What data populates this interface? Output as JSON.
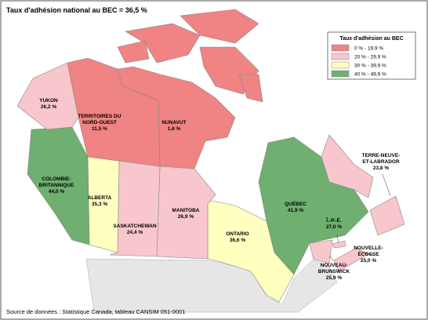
{
  "title": "Taux d'adhésion national au BEC = 36,5 %",
  "legend": {
    "title": "Taux d'adhésion au BEC",
    "items": [
      {
        "label": "0 % - 19,9 %",
        "color": "#f08383"
      },
      {
        "label": "20 % - 29,9 %",
        "color": "#f8c6cd"
      },
      {
        "label": "30 % - 39,9 %",
        "color": "#ffffc0"
      },
      {
        "label": "40 % - 49,9 %",
        "color": "#6faf6f"
      }
    ]
  },
  "regions": [
    {
      "name": [
        "YUKON"
      ],
      "value": "26,2 %",
      "color": "#f8c6cd"
    },
    {
      "name": [
        "TERRITOIRES DU",
        "NORD-OUEST"
      ],
      "value": "11,5 %",
      "color": "#f08383"
    },
    {
      "name": [
        "NUNAVUT"
      ],
      "value": "1,6 %",
      "color": "#f08383"
    },
    {
      "name": [
        "COLOMBIE-",
        "BRITANNIQUE"
      ],
      "value": "44,0 %",
      "color": "#6faf6f"
    },
    {
      "name": [
        "ALBERTA"
      ],
      "value": "35,3 %",
      "color": "#ffffc0"
    },
    {
      "name": [
        "SASKATCHEWAN"
      ],
      "value": "24,4 %",
      "color": "#f8c6cd"
    },
    {
      "name": [
        "MANITOBA"
      ],
      "value": "26,9 %",
      "color": "#f8c6cd"
    },
    {
      "name": [
        "ONTARIO"
      ],
      "value": "36,6 %",
      "color": "#ffffc0"
    },
    {
      "name": [
        "QUÉBEC"
      ],
      "value": "41,9 %",
      "color": "#6faf6f"
    },
    {
      "name": [
        "TERRE-NEUVE-",
        "ET-LABRADOR"
      ],
      "value": "23,8 %",
      "color": "#f8c6cd"
    },
    {
      "name": [
        "Î.-P.-É."
      ],
      "value": "27,0 %",
      "color": "#f8c6cd"
    },
    {
      "name": [
        "NOUVELLE-",
        "ÉCOSSE"
      ],
      "value": "25,0 %",
      "color": "#f8c6cd"
    },
    {
      "name": [
        "NOUVEAU-",
        "BRUNSWICK"
      ],
      "value": "25,9 %",
      "color": "#f8c6cd"
    }
  ],
  "source": "Source de données : Statistique Canada, tableau CANSIM 051-0001"
}
